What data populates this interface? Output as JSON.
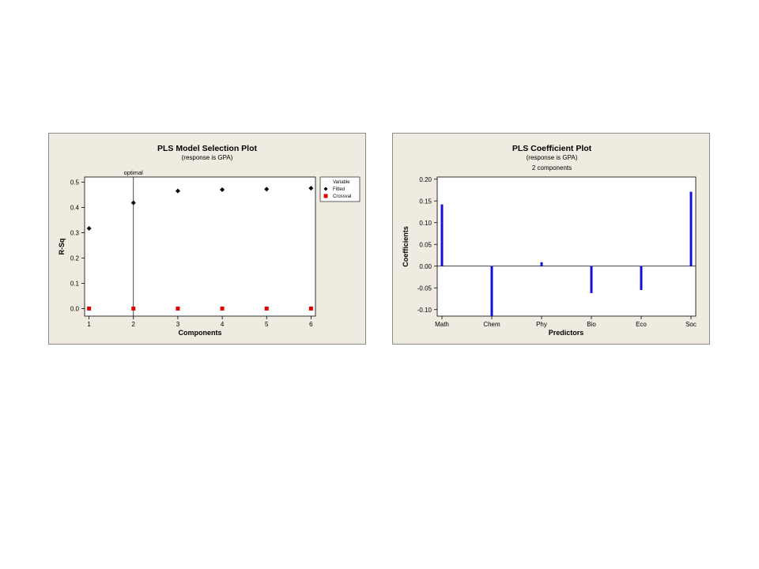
{
  "chart_data": [
    {
      "type": "scatter",
      "title": "PLS Model Selection Plot",
      "subtitle": "(response is GPA)",
      "xlabel": "Components",
      "ylabel": "R-Sq",
      "x_ticks": [
        1,
        2,
        3,
        4,
        5,
        6
      ],
      "y_ticks": [
        "0.0",
        "0.1",
        "0.2",
        "0.3",
        "0.4",
        "0.5"
      ],
      "xlim": [
        0.9,
        6.1
      ],
      "ylim": [
        -0.03,
        0.52
      ],
      "annotation": {
        "label": "optimal",
        "x": 2
      },
      "legend": {
        "title": "Variable",
        "position": "right"
      },
      "series": [
        {
          "name": "Fitted",
          "color": "#000000",
          "marker": "diamond",
          "x": [
            1,
            2,
            3,
            4,
            5,
            6
          ],
          "y": [
            0.317,
            0.418,
            0.465,
            0.47,
            0.472,
            0.476
          ]
        },
        {
          "name": "Crossval",
          "color": "#e00000",
          "marker": "square",
          "x": [
            1,
            2,
            3,
            4,
            5,
            6
          ],
          "y": [
            0.0,
            0.0,
            0.0,
            0.0,
            0.0,
            0.0
          ]
        }
      ]
    },
    {
      "type": "bar",
      "title": "PLS Coefficient Plot",
      "subtitle": "(response is GPA)",
      "subtitle2": "2 components",
      "xlabel": "Predictors",
      "ylabel": "Coefficients",
      "categories": [
        "Math",
        "Chem",
        "Phy",
        "Bio",
        "Eco",
        "Soc"
      ],
      "values": [
        0.142,
        -0.115,
        0.009,
        -0.062,
        -0.055,
        0.171
      ],
      "y_ticks": [
        "0.20",
        "0.15",
        "0.10",
        "0.05",
        "0.00",
        "-0.05",
        "-0.10"
      ],
      "y_tick_values": [
        0.2,
        0.15,
        0.1,
        0.05,
        0.0,
        -0.05,
        -0.1
      ],
      "ylim": [
        -0.115,
        0.205
      ],
      "color": "#1010d8"
    }
  ]
}
